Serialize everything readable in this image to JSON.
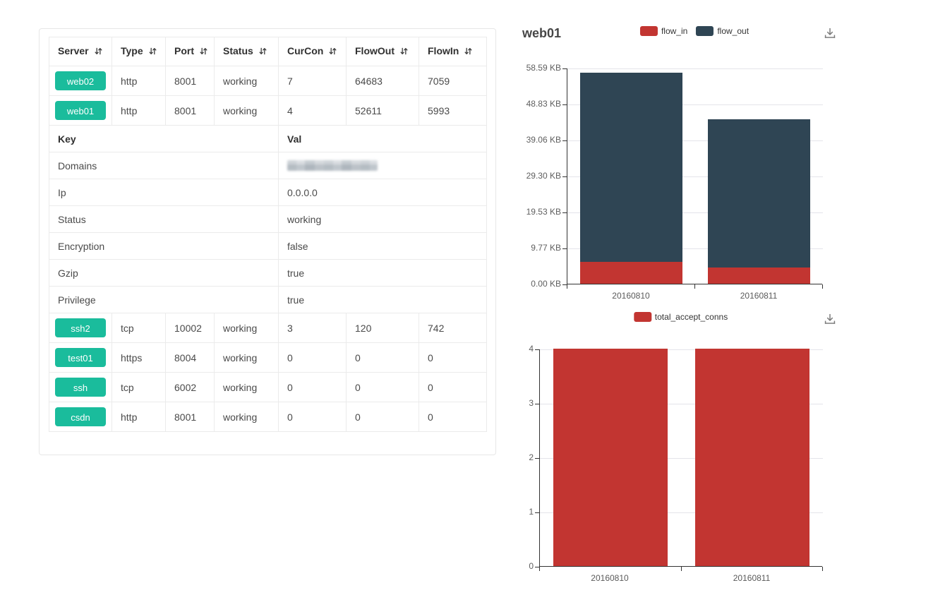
{
  "table": {
    "columns": [
      "Server",
      "Type",
      "Port",
      "Status",
      "CurCon",
      "FlowOut",
      "FlowIn"
    ],
    "rows_top": [
      {
        "server": "web02",
        "type": "http",
        "port": "8001",
        "status": "working",
        "curcon": "7",
        "flowout": "64683",
        "flowin": "7059"
      },
      {
        "server": "web01",
        "type": "http",
        "port": "8001",
        "status": "working",
        "curcon": "4",
        "flowout": "52611",
        "flowin": "5993"
      }
    ],
    "kv_header": {
      "key": "Key",
      "val": "Val"
    },
    "kv_rows": [
      {
        "key": "Domains",
        "val": "",
        "redacted": true
      },
      {
        "key": "Ip",
        "val": "0.0.0.0"
      },
      {
        "key": "Status",
        "val": "working"
      },
      {
        "key": "Encryption",
        "val": "false"
      },
      {
        "key": "Gzip",
        "val": "true"
      },
      {
        "key": "Privilege",
        "val": "true"
      }
    ],
    "rows_bottom": [
      {
        "server": "ssh2",
        "type": "tcp",
        "port": "10002",
        "status": "working",
        "curcon": "3",
        "flowout": "120",
        "flowin": "742"
      },
      {
        "server": "test01",
        "type": "https",
        "port": "8004",
        "status": "working",
        "curcon": "0",
        "flowout": "0",
        "flowin": "0"
      },
      {
        "server": "ssh",
        "type": "tcp",
        "port": "6002",
        "status": "working",
        "curcon": "0",
        "flowout": "0",
        "flowin": "0"
      },
      {
        "server": "csdn",
        "type": "http",
        "port": "8001",
        "status": "working",
        "curcon": "0",
        "flowout": "0",
        "flowin": "0"
      }
    ]
  },
  "chart_data": [
    {
      "type": "bar",
      "stacked": true,
      "title": "web01",
      "categories": [
        "20160810",
        "20160811"
      ],
      "series": [
        {
          "name": "flow_in",
          "color": "#c23531",
          "values": [
            5993,
            4500
          ]
        },
        {
          "name": "flow_out",
          "color": "#2f4554",
          "values": [
            52611,
            41100
          ]
        }
      ],
      "unit": "bytes",
      "ylim": [
        0,
        60000
      ],
      "y_ticks": [
        {
          "value": 0,
          "label": "0.00 KB"
        },
        {
          "value": 10000,
          "label": "9.77 KB"
        },
        {
          "value": 20000,
          "label": "19.53 KB"
        },
        {
          "value": 30000,
          "label": "29.30 KB"
        },
        {
          "value": 40000,
          "label": "39.06 KB"
        },
        {
          "value": 50000,
          "label": "48.83 KB"
        },
        {
          "value": 60000,
          "label": "58.59 KB"
        }
      ],
      "legend_position": "top-center",
      "grid": true,
      "toolbox": "save-as-image"
    },
    {
      "type": "bar",
      "stacked": false,
      "title": "",
      "categories": [
        "20160810",
        "20160811"
      ],
      "series": [
        {
          "name": "total_accept_conns",
          "color": "#c23531",
          "values": [
            4,
            4
          ]
        }
      ],
      "ylim": [
        0,
        4
      ],
      "y_ticks": [
        {
          "value": 0,
          "label": "0"
        },
        {
          "value": 1,
          "label": "1"
        },
        {
          "value": 2,
          "label": "2"
        },
        {
          "value": 3,
          "label": "3"
        },
        {
          "value": 4,
          "label": "4"
        }
      ],
      "legend_position": "top-center",
      "grid": true,
      "toolbox": "save-as-image"
    }
  ],
  "colors": {
    "server_button": "#1abc9c",
    "flow_in_red": "#c23531",
    "flow_out_navy": "#2f4554",
    "table_border": "#ebebeb",
    "axis": "#333333",
    "gridline": "#e4e4ea"
  }
}
